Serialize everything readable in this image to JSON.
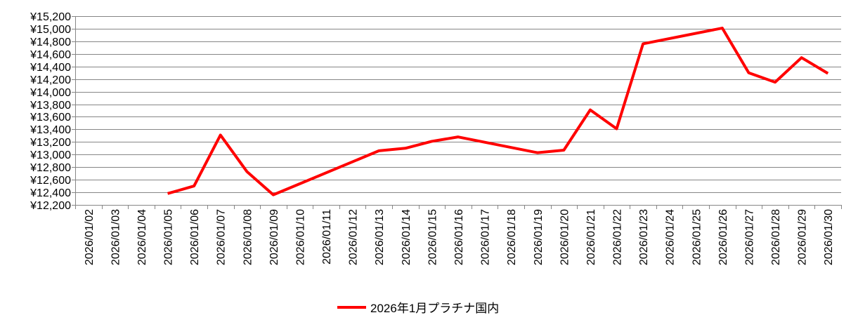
{
  "chart_data": {
    "type": "line",
    "title": "",
    "xlabel": "",
    "ylabel": "",
    "categories": [
      "2026/01/02",
      "2026/01/03",
      "2026/01/04",
      "2026/01/05",
      "2026/01/06",
      "2026/01/07",
      "2026/01/08",
      "2026/01/09",
      "2026/01/10",
      "2026/01/11",
      "2026/01/12",
      "2026/01/13",
      "2026/01/14",
      "2026/01/15",
      "2026/01/16",
      "2026/01/17",
      "2026/01/18",
      "2026/01/19",
      "2026/01/20",
      "2026/01/21",
      "2026/01/22",
      "2026/01/23",
      "2026/01/24",
      "2026/01/25",
      "2026/01/26",
      "2026/01/27",
      "2026/01/28",
      "2026/01/29",
      "2026/01/30"
    ],
    "series": [
      {
        "name": "2026年1月プラチナ国内",
        "color": "#ff0000",
        "values": [
          null,
          null,
          null,
          12380,
          12500,
          13310,
          12730,
          12360,
          null,
          null,
          null,
          13060,
          13100,
          13210,
          13280,
          null,
          null,
          13030,
          13070,
          13710,
          13410,
          14760,
          null,
          null,
          15010,
          14300,
          14150,
          14540,
          14290
        ]
      }
    ],
    "ylim": [
      12200,
      15200
    ],
    "yticks": [
      12200,
      12400,
      12600,
      12800,
      13000,
      13200,
      13400,
      13600,
      13800,
      14000,
      14200,
      14400,
      14600,
      14800,
      15000,
      15200
    ],
    "ytick_prefix": "¥",
    "gaps": "connected",
    "grid": "horizontal",
    "gridColor": "#868686",
    "legend": "bottom"
  }
}
